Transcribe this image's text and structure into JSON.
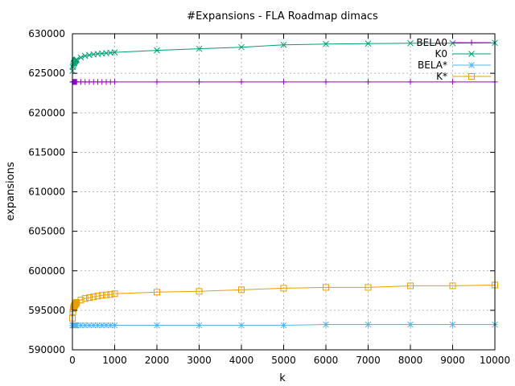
{
  "chart_data": {
    "type": "line",
    "title": "#Expansions - FLA Roadmap dimacs",
    "xlabel": "k",
    "ylabel": "expansions",
    "xlim": [
      0,
      10000
    ],
    "ylim": [
      590000,
      630000
    ],
    "xticks": [
      0,
      1000,
      2000,
      3000,
      4000,
      5000,
      6000,
      7000,
      8000,
      9000,
      10000
    ],
    "yticks": [
      590000,
      595000,
      600000,
      605000,
      610000,
      615000,
      620000,
      625000,
      630000
    ],
    "grid": true,
    "legend_position": "top-right",
    "series": [
      {
        "name": "BELA0",
        "color": "#9400d3",
        "marker": "plus",
        "x": [
          1,
          10,
          20,
          30,
          40,
          50,
          60,
          70,
          80,
          90,
          100,
          200,
          300,
          400,
          500,
          600,
          700,
          800,
          900,
          1000,
          2000,
          3000,
          4000,
          5000,
          6000,
          7000,
          8000,
          9000,
          10000
        ],
        "y": [
          623900,
          623900,
          623900,
          623900,
          623900,
          623900,
          623900,
          623900,
          623900,
          623900,
          623900,
          623900,
          623900,
          623900,
          623900,
          623900,
          623900,
          623900,
          623900,
          623900,
          623900,
          623900,
          623900,
          623900,
          623900,
          623900,
          623900,
          623900,
          623900
        ]
      },
      {
        "name": "K0",
        "color": "#009e73",
        "marker": "cross",
        "x": [
          1,
          10,
          20,
          30,
          40,
          50,
          60,
          70,
          80,
          90,
          100,
          200,
          300,
          400,
          500,
          600,
          700,
          800,
          900,
          1000,
          2000,
          3000,
          4000,
          5000,
          6000,
          7000,
          8000,
          9000,
          10000
        ],
        "y": [
          625300,
          625800,
          626000,
          626200,
          626300,
          626400,
          626500,
          626600,
          626650,
          626700,
          626750,
          627000,
          627200,
          627300,
          627400,
          627450,
          627500,
          627550,
          627600,
          627650,
          627900,
          628100,
          628300,
          628600,
          628700,
          628750,
          628800,
          628800,
          628850
        ]
      },
      {
        "name": "BELA*",
        "color": "#56b4e9",
        "marker": "star",
        "x": [
          1,
          10,
          20,
          30,
          40,
          50,
          60,
          70,
          80,
          90,
          100,
          200,
          300,
          400,
          500,
          600,
          700,
          800,
          900,
          1000,
          2000,
          3000,
          4000,
          5000,
          6000,
          7000,
          8000,
          9000,
          10000
        ],
        "y": [
          593100,
          593100,
          593100,
          593100,
          593100,
          593100,
          593100,
          593100,
          593100,
          593100,
          593100,
          593100,
          593100,
          593100,
          593100,
          593100,
          593100,
          593100,
          593100,
          593100,
          593100,
          593100,
          593100,
          593100,
          593200,
          593200,
          593200,
          593200,
          593200
        ]
      },
      {
        "name": "K*",
        "color": "#e69f00",
        "marker": "square",
        "x": [
          1,
          10,
          20,
          30,
          40,
          50,
          60,
          70,
          80,
          90,
          100,
          200,
          300,
          400,
          500,
          600,
          700,
          800,
          900,
          1000,
          2000,
          3000,
          4000,
          5000,
          6000,
          7000,
          8000,
          9000,
          10000
        ],
        "y": [
          594000,
          594800,
          595200,
          595400,
          595500,
          595600,
          595700,
          595800,
          595850,
          595900,
          596000,
          596300,
          596500,
          596600,
          596700,
          596800,
          596900,
          596950,
          597000,
          597100,
          597300,
          597400,
          597600,
          597800,
          597900,
          597900,
          598100,
          598100,
          598200
        ]
      }
    ]
  }
}
